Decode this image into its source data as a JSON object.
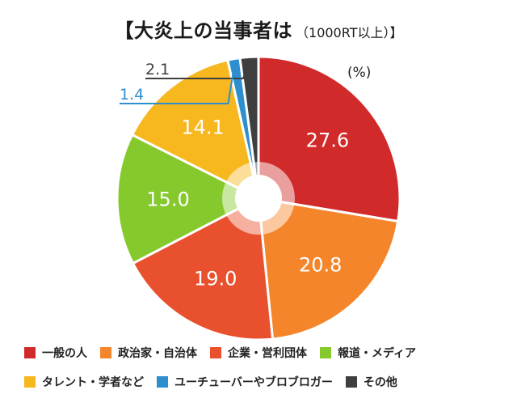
{
  "title": "【大炎上の当事者は",
  "title_sub": "（1000RT以上）】",
  "unit": "(%)",
  "chart_data": {
    "type": "pie",
    "unit": "(%)",
    "slices": [
      {
        "label": "一般の人",
        "value": 27.6,
        "color": "#D12A2A"
      },
      {
        "label": "政治家・自治体",
        "value": 20.8,
        "color": "#F5852B"
      },
      {
        "label": "企業・営利団体",
        "value": 19.0,
        "color": "#E8502E"
      },
      {
        "label": "報道・メディア",
        "value": 15.0,
        "color": "#86C92D"
      },
      {
        "label": "タレント・学者など",
        "value": 14.1,
        "color": "#F7B71E"
      },
      {
        "label": "ユーチューバーやブロブロガー",
        "value": 1.4,
        "color": "#2E8FCF"
      },
      {
        "label": "その他",
        "value": 2.1,
        "color": "#3F3F3F"
      }
    ]
  },
  "legend_rows": [
    [
      0,
      1,
      2,
      3
    ],
    [
      4,
      5,
      6
    ]
  ]
}
